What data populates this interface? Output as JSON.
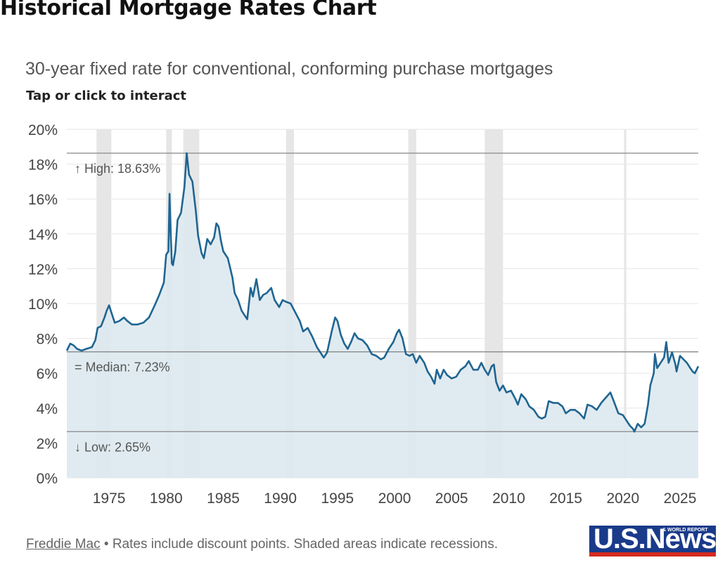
{
  "page": {
    "title": "Historical Mortgage Rates Chart",
    "subtitle": "30-year fixed rate for conventional, conforming purchase mortgages",
    "hint": "Tap or click to interact"
  },
  "footer": {
    "source_link": "Freddie Mac",
    "note": " • Rates include discount points. Shaded areas indicate recessions."
  },
  "logo": {
    "text": "U.S.News",
    "tagline": "& WORLD REPORT"
  },
  "colors": {
    "line": "#1f6591",
    "area": "#dde9f0",
    "recession": "#e6e6e6",
    "refline": "#888888",
    "grid": "#e6e6e6"
  },
  "chart_data": {
    "type": "area",
    "title": "",
    "xlabel": "",
    "ylabel": "",
    "xlim": [
      1971.3,
      2026.6
    ],
    "ylim": [
      0,
      20
    ],
    "y_ticks": [
      "0%",
      "2%",
      "4%",
      "6%",
      "8%",
      "10%",
      "12%",
      "14%",
      "16%",
      "18%",
      "20%"
    ],
    "x_ticks": [
      "1975",
      "1980",
      "1985",
      "1990",
      "1995",
      "2000",
      "2005",
      "2010",
      "2015",
      "2020",
      "2025"
    ],
    "grid": true,
    "series": [
      {
        "name": "",
        "points": [
          [
            1971.3,
            7.3
          ],
          [
            1971.6,
            7.7
          ],
          [
            1971.9,
            7.6
          ],
          [
            1972.2,
            7.4
          ],
          [
            1972.6,
            7.3
          ],
          [
            1973.0,
            7.4
          ],
          [
            1973.5,
            7.5
          ],
          [
            1973.8,
            7.9
          ],
          [
            1974.0,
            8.6
          ],
          [
            1974.3,
            8.7
          ],
          [
            1974.6,
            9.2
          ],
          [
            1974.8,
            9.6
          ],
          [
            1975.0,
            9.9
          ],
          [
            1975.2,
            9.5
          ],
          [
            1975.5,
            8.9
          ],
          [
            1975.9,
            9.0
          ],
          [
            1976.3,
            9.2
          ],
          [
            1976.6,
            9.0
          ],
          [
            1977.0,
            8.8
          ],
          [
            1977.5,
            8.8
          ],
          [
            1978.0,
            8.9
          ],
          [
            1978.5,
            9.2
          ],
          [
            1979.0,
            9.9
          ],
          [
            1979.4,
            10.5
          ],
          [
            1979.8,
            11.2
          ],
          [
            1980.0,
            12.8
          ],
          [
            1980.2,
            13.0
          ],
          [
            1980.3,
            16.3
          ],
          [
            1980.4,
            14.0
          ],
          [
            1980.5,
            12.3
          ],
          [
            1980.6,
            12.2
          ],
          [
            1980.8,
            13.0
          ],
          [
            1981.0,
            14.8
          ],
          [
            1981.3,
            15.2
          ],
          [
            1981.6,
            16.7
          ],
          [
            1981.8,
            18.63
          ],
          [
            1982.0,
            17.4
          ],
          [
            1982.3,
            17.0
          ],
          [
            1982.6,
            15.3
          ],
          [
            1982.8,
            13.9
          ],
          [
            1983.1,
            12.9
          ],
          [
            1983.3,
            12.6
          ],
          [
            1983.6,
            13.7
          ],
          [
            1983.9,
            13.4
          ],
          [
            1984.2,
            13.8
          ],
          [
            1984.4,
            14.6
          ],
          [
            1984.6,
            14.4
          ],
          [
            1984.8,
            13.6
          ],
          [
            1985.0,
            13.0
          ],
          [
            1985.4,
            12.6
          ],
          [
            1985.8,
            11.5
          ],
          [
            1986.0,
            10.6
          ],
          [
            1986.3,
            10.2
          ],
          [
            1986.6,
            9.6
          ],
          [
            1986.9,
            9.3
          ],
          [
            1987.1,
            9.1
          ],
          [
            1987.4,
            10.9
          ],
          [
            1987.6,
            10.4
          ],
          [
            1987.9,
            11.4
          ],
          [
            1988.2,
            10.2
          ],
          [
            1988.5,
            10.5
          ],
          [
            1988.8,
            10.6
          ],
          [
            1989.2,
            10.9
          ],
          [
            1989.5,
            10.2
          ],
          [
            1989.9,
            9.8
          ],
          [
            1990.2,
            10.2
          ],
          [
            1990.5,
            10.1
          ],
          [
            1990.9,
            10.0
          ],
          [
            1991.3,
            9.5
          ],
          [
            1991.7,
            9.0
          ],
          [
            1992.0,
            8.4
          ],
          [
            1992.4,
            8.6
          ],
          [
            1992.8,
            8.1
          ],
          [
            1993.2,
            7.5
          ],
          [
            1993.6,
            7.1
          ],
          [
            1993.8,
            6.9
          ],
          [
            1994.1,
            7.2
          ],
          [
            1994.5,
            8.4
          ],
          [
            1994.8,
            9.2
          ],
          [
            1995.0,
            9.0
          ],
          [
            1995.3,
            8.2
          ],
          [
            1995.6,
            7.7
          ],
          [
            1995.9,
            7.4
          ],
          [
            1996.2,
            7.8
          ],
          [
            1996.5,
            8.3
          ],
          [
            1996.8,
            8.0
          ],
          [
            1997.2,
            7.9
          ],
          [
            1997.6,
            7.6
          ],
          [
            1998.0,
            7.1
          ],
          [
            1998.4,
            7.0
          ],
          [
            1998.8,
            6.8
          ],
          [
            1999.1,
            6.9
          ],
          [
            1999.5,
            7.4
          ],
          [
            1999.9,
            7.8
          ],
          [
            2000.2,
            8.3
          ],
          [
            2000.4,
            8.5
          ],
          [
            2000.7,
            8.0
          ],
          [
            2001.0,
            7.1
          ],
          [
            2001.3,
            7.0
          ],
          [
            2001.6,
            7.1
          ],
          [
            2001.9,
            6.6
          ],
          [
            2002.2,
            7.0
          ],
          [
            2002.6,
            6.6
          ],
          [
            2002.9,
            6.1
          ],
          [
            2003.2,
            5.8
          ],
          [
            2003.5,
            5.4
          ],
          [
            2003.7,
            6.2
          ],
          [
            2004.0,
            5.7
          ],
          [
            2004.3,
            6.2
          ],
          [
            2004.6,
            5.9
          ],
          [
            2005.0,
            5.7
          ],
          [
            2005.4,
            5.8
          ],
          [
            2005.8,
            6.2
          ],
          [
            2006.2,
            6.4
          ],
          [
            2006.5,
            6.7
          ],
          [
            2006.9,
            6.2
          ],
          [
            2007.3,
            6.2
          ],
          [
            2007.6,
            6.6
          ],
          [
            2007.9,
            6.2
          ],
          [
            2008.2,
            5.9
          ],
          [
            2008.5,
            6.4
          ],
          [
            2008.7,
            6.5
          ],
          [
            2008.9,
            5.5
          ],
          [
            2009.2,
            5.0
          ],
          [
            2009.5,
            5.3
          ],
          [
            2009.8,
            4.9
          ],
          [
            2010.2,
            5.0
          ],
          [
            2010.6,
            4.5
          ],
          [
            2010.8,
            4.2
          ],
          [
            2011.1,
            4.8
          ],
          [
            2011.5,
            4.5
          ],
          [
            2011.8,
            4.1
          ],
          [
            2012.2,
            3.9
          ],
          [
            2012.6,
            3.5
          ],
          [
            2012.9,
            3.4
          ],
          [
            2013.2,
            3.5
          ],
          [
            2013.5,
            4.4
          ],
          [
            2013.9,
            4.3
          ],
          [
            2014.3,
            4.3
          ],
          [
            2014.7,
            4.1
          ],
          [
            2015.0,
            3.7
          ],
          [
            2015.4,
            3.9
          ],
          [
            2015.8,
            3.9
          ],
          [
            2016.2,
            3.7
          ],
          [
            2016.6,
            3.4
          ],
          [
            2016.9,
            4.2
          ],
          [
            2017.3,
            4.1
          ],
          [
            2017.7,
            3.9
          ],
          [
            2018.1,
            4.3
          ],
          [
            2018.5,
            4.6
          ],
          [
            2018.9,
            4.9
          ],
          [
            2019.2,
            4.4
          ],
          [
            2019.6,
            3.7
          ],
          [
            2020.0,
            3.6
          ],
          [
            2020.3,
            3.3
          ],
          [
            2020.6,
            3.0
          ],
          [
            2020.9,
            2.8
          ],
          [
            2021.0,
            2.65
          ],
          [
            2021.3,
            3.1
          ],
          [
            2021.6,
            2.9
          ],
          [
            2021.9,
            3.1
          ],
          [
            2022.2,
            4.2
          ],
          [
            2022.4,
            5.3
          ],
          [
            2022.7,
            6.0
          ],
          [
            2022.8,
            7.1
          ],
          [
            2023.0,
            6.3
          ],
          [
            2023.3,
            6.6
          ],
          [
            2023.6,
            6.9
          ],
          [
            2023.8,
            7.79
          ],
          [
            2024.0,
            6.6
          ],
          [
            2024.3,
            7.2
          ],
          [
            2024.6,
            6.5
          ],
          [
            2024.7,
            6.1
          ],
          [
            2025.0,
            7.0
          ],
          [
            2025.3,
            6.8
          ],
          [
            2025.6,
            6.6
          ],
          [
            2025.9,
            6.3
          ],
          [
            2026.1,
            6.1
          ],
          [
            2026.3,
            6.0
          ],
          [
            2026.6,
            6.4
          ]
        ]
      }
    ],
    "recessions": [
      [
        1973.9,
        1975.2
      ],
      [
        1980.0,
        1980.5
      ],
      [
        1981.5,
        1982.9
      ],
      [
        1990.5,
        1991.2
      ],
      [
        2001.2,
        2001.9
      ],
      [
        2007.9,
        2009.5
      ],
      [
        2020.1,
        2020.3
      ]
    ],
    "reference_lines": [
      {
        "value": 18.63,
        "label": "↑ High: 18.63%"
      },
      {
        "value": 7.23,
        "label": "= Median: 7.23%"
      },
      {
        "value": 2.65,
        "label": "↓ Low: 2.65%"
      }
    ]
  }
}
